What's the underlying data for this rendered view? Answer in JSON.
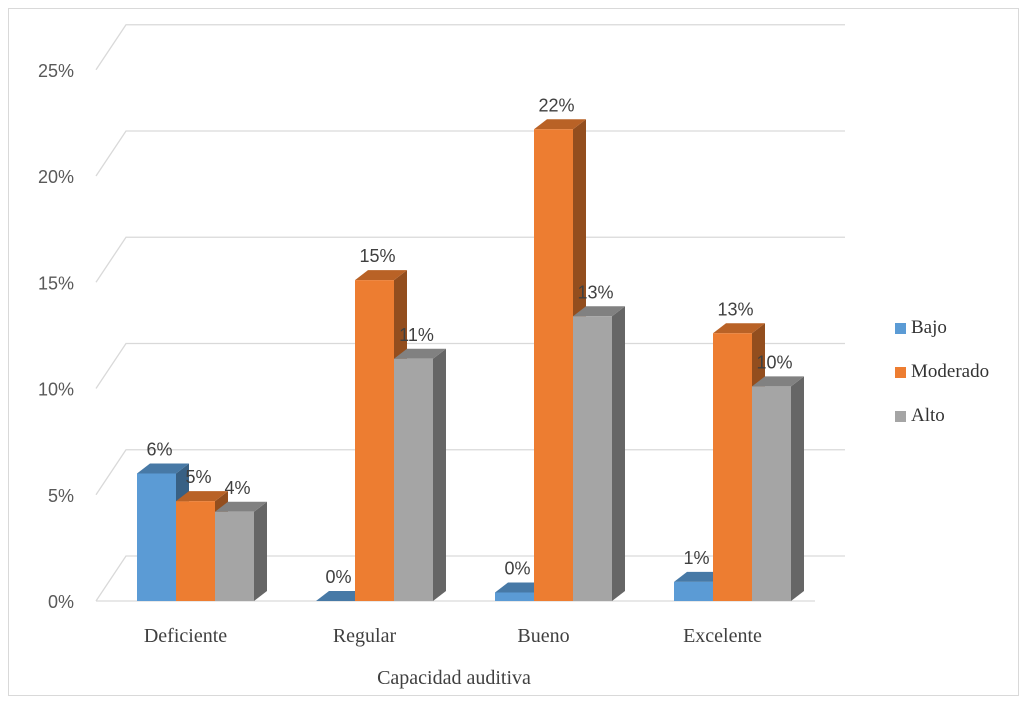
{
  "chart_data": {
    "type": "bar",
    "categories": [
      "Deficiente",
      "Regular",
      "Bueno",
      "Excelente"
    ],
    "series": [
      {
        "name": "Bajo",
        "values": [
          6,
          0,
          0.4,
          0.9
        ],
        "labels": [
          "6%",
          "0%",
          "0%",
          "1%"
        ],
        "color": "#5b9bd5"
      },
      {
        "name": "Moderado",
        "values": [
          4.7,
          15.1,
          22.2,
          12.6
        ],
        "labels": [
          "5%",
          "15%",
          "22%",
          "13%"
        ],
        "color": "#ed7d31"
      },
      {
        "name": "Alto",
        "values": [
          4.2,
          11.4,
          13.4,
          10.1
        ],
        "labels": [
          "4%",
          "11%",
          "13%",
          "10%"
        ],
        "color": "#a5a5a5"
      }
    ],
    "title": "",
    "xlabel": "Capacidad auditiva",
    "ylabel": "",
    "ylim": [
      0,
      25
    ],
    "yticks": [
      "0%",
      "5%",
      "10%",
      "15%",
      "20%",
      "25%"
    ],
    "grid": true,
    "legend_position": "right",
    "style": "3d-clustered-column"
  }
}
